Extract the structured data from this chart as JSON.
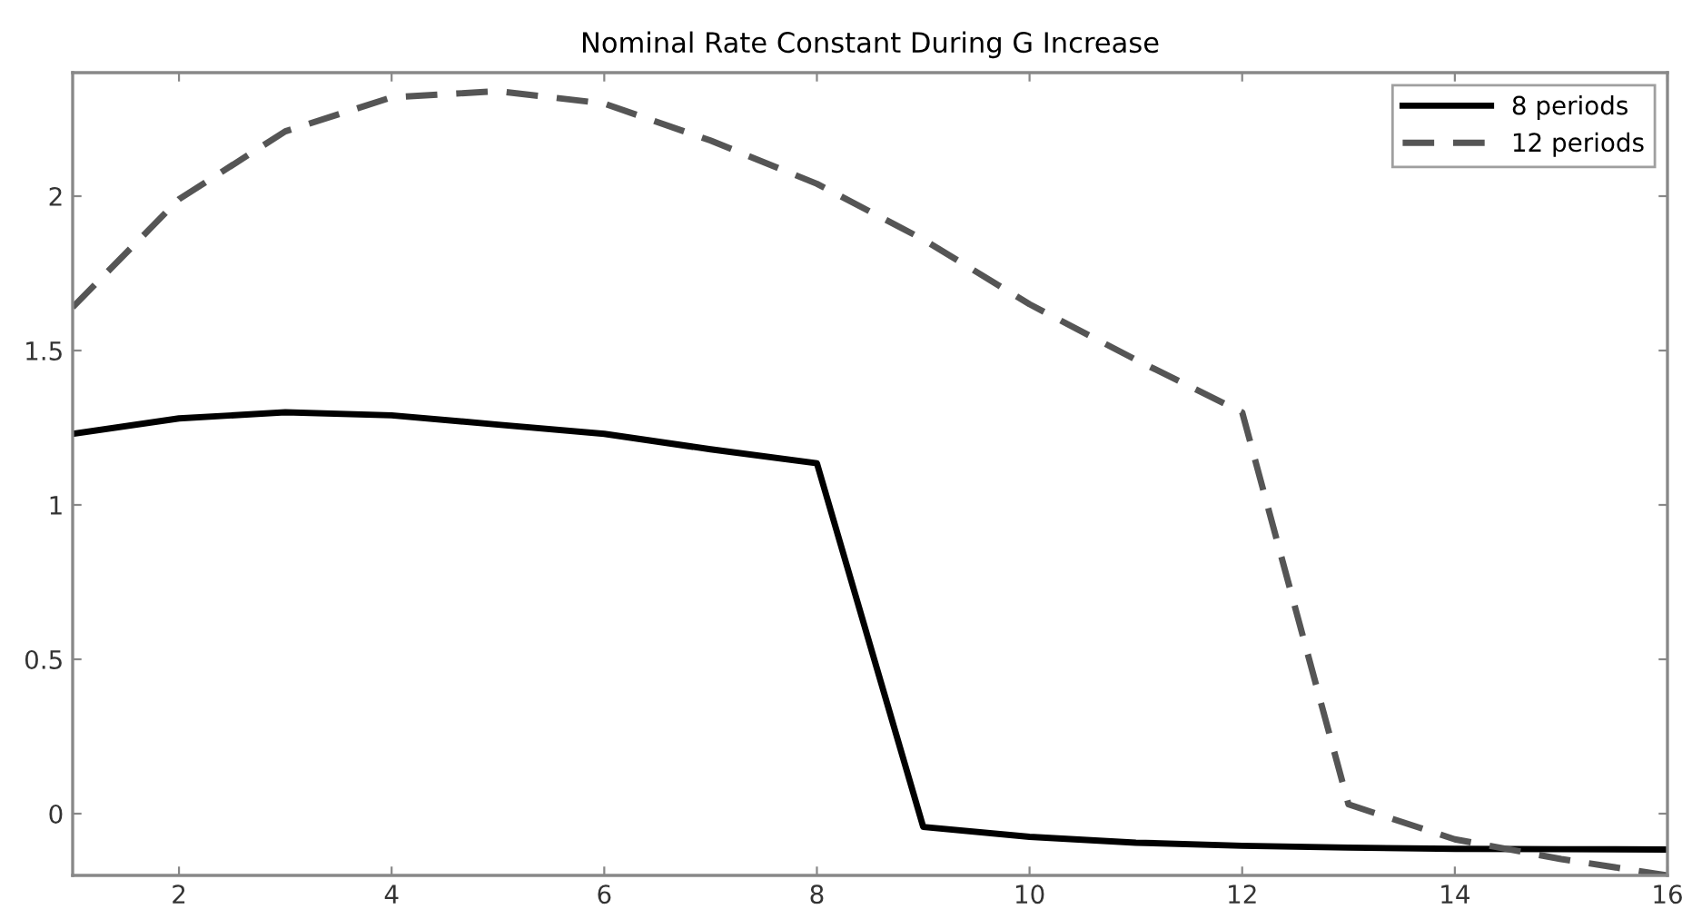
{
  "chart_data": {
    "type": "line",
    "title": "Nominal Rate Constant During G Increase",
    "x": [
      1,
      2,
      3,
      4,
      5,
      6,
      7,
      8,
      9,
      10,
      11,
      12,
      13,
      14,
      15,
      16
    ],
    "series": [
      {
        "name": "8 periods",
        "color": "#000000",
        "line_style": "solid",
        "values": [
          1.23,
          1.28,
          1.3,
          1.29,
          1.26,
          1.23,
          1.18,
          1.135,
          -0.043,
          -0.075,
          -0.094,
          -0.104,
          -0.11,
          -0.114,
          -0.115,
          -0.116
        ]
      },
      {
        "name": "12 periods",
        "color": "#555555",
        "line_style": "dashed",
        "values": [
          1.64,
          1.99,
          2.21,
          2.32,
          2.34,
          2.3,
          2.18,
          2.04,
          1.86,
          1.65,
          1.47,
          1.3,
          0.03,
          -0.083,
          -0.147,
          -0.2
        ]
      }
    ],
    "xlim": [
      1,
      16
    ],
    "ylim": [
      -0.2,
      2.4
    ],
    "xticks": [
      2,
      4,
      6,
      8,
      10,
      12,
      14,
      16
    ],
    "yticks": [
      0,
      0.5,
      1,
      1.5,
      2
    ],
    "grid": false,
    "legend": "top right",
    "marker": "none"
  }
}
